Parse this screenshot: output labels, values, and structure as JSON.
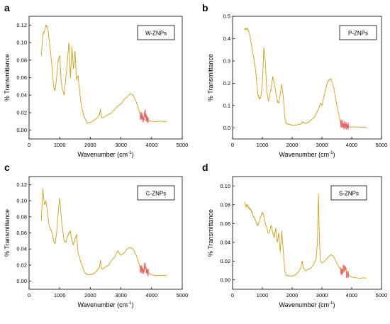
{
  "colors": {
    "line": "#c8a020",
    "axis": "#000000",
    "noise": "#e04a5a"
  },
  "chart_data": [
    {
      "type": "line",
      "panel_letter": "a",
      "legend_label": "W-ZNPs",
      "xlabel": "Wavenumber (cm",
      "xlabel_sup": "-1",
      "xlabel_close": ")",
      "ylabel": "% Transmittance",
      "xlim": [
        0,
        5000
      ],
      "ylim": [
        -0.01,
        0.13
      ],
      "xticks": [
        0,
        1000,
        2000,
        3000,
        4000,
        5000
      ],
      "yticks": [
        0.0,
        0.02,
        0.04,
        0.06,
        0.08,
        0.1,
        0.12
      ],
      "ytick_labels": [
        "0.00",
        "0.02",
        "0.04",
        "0.06",
        "0.08",
        "0.10",
        "0.12"
      ],
      "grid": false,
      "legend_position": "top-right",
      "series": [
        {
          "x": [
            400,
            450,
            500,
            550,
            600,
            650,
            700,
            750,
            800,
            850,
            900,
            950,
            1000,
            1050,
            1100,
            1150,
            1200,
            1250,
            1300,
            1350,
            1400,
            1450,
            1500,
            1550,
            1600,
            1650,
            1700,
            1750,
            1800,
            1900,
            2000,
            2100,
            2200,
            2300,
            2330,
            2360,
            2400,
            2500,
            2600,
            2700,
            2800,
            2900,
            3000,
            3100,
            3200,
            3300,
            3400,
            3500,
            3600,
            3700,
            3750,
            3800,
            3850,
            3900,
            4000,
            4200,
            4500
          ],
          "y": [
            0.085,
            0.11,
            0.112,
            0.12,
            0.118,
            0.105,
            0.09,
            0.072,
            0.05,
            0.045,
            0.06,
            0.08,
            0.085,
            0.055,
            0.045,
            0.04,
            0.06,
            0.078,
            0.1,
            0.06,
            0.095,
            0.07,
            0.09,
            0.058,
            0.062,
            0.045,
            0.03,
            0.022,
            0.015,
            0.008,
            0.009,
            0.011,
            0.013,
            0.018,
            0.024,
            0.015,
            0.014,
            0.016,
            0.018,
            0.02,
            0.024,
            0.028,
            0.03,
            0.035,
            0.038,
            0.042,
            0.04,
            0.032,
            0.022,
            0.015,
            0.012,
            0.018,
            0.013,
            0.011,
            0.01,
            0.01,
            0.01
          ]
        }
      ]
    },
    {
      "type": "line",
      "panel_letter": "b",
      "legend_label": "P-ZNPs",
      "xlabel": "Wavenumber (cm",
      "xlabel_sup": "-1",
      "xlabel_close": ")",
      "ylabel": "% Transmittance",
      "xlim": [
        0,
        5000
      ],
      "ylim": [
        -0.05,
        0.5
      ],
      "xticks": [
        0,
        1000,
        2000,
        3000,
        4000,
        5000
      ],
      "yticks": [
        0.0,
        0.1,
        0.2,
        0.3,
        0.4,
        0.5
      ],
      "ytick_labels": [
        "0.0",
        "0.1",
        "0.2",
        "0.3",
        "0.4",
        "0.5"
      ],
      "grid": false,
      "legend_position": "top-right",
      "series": [
        {
          "x": [
            400,
            450,
            500,
            550,
            600,
            650,
            700,
            750,
            800,
            850,
            900,
            950,
            1000,
            1050,
            1100,
            1150,
            1200,
            1250,
            1300,
            1350,
            1400,
            1450,
            1500,
            1550,
            1600,
            1650,
            1700,
            1750,
            1800,
            1900,
            2000,
            2100,
            2200,
            2300,
            2350,
            2400,
            2500,
            2600,
            2700,
            2800,
            2900,
            2950,
            3000,
            3100,
            3200,
            3300,
            3400,
            3500,
            3600,
            3700,
            3800,
            3900,
            4000,
            4200,
            4500
          ],
          "y": [
            0.445,
            0.44,
            0.448,
            0.43,
            0.4,
            0.36,
            0.32,
            0.28,
            0.22,
            0.15,
            0.13,
            0.14,
            0.2,
            0.36,
            0.3,
            0.16,
            0.12,
            0.15,
            0.18,
            0.23,
            0.2,
            0.16,
            0.12,
            0.11,
            0.15,
            0.195,
            0.14,
            0.05,
            0.02,
            0.015,
            0.012,
            0.012,
            0.015,
            0.018,
            0.028,
            0.02,
            0.022,
            0.03,
            0.04,
            0.06,
            0.09,
            0.11,
            0.1,
            0.16,
            0.21,
            0.22,
            0.18,
            0.1,
            0.04,
            0.015,
            0.008,
            0.005,
            0.004,
            0.003,
            0.002
          ]
        }
      ]
    },
    {
      "type": "line",
      "panel_letter": "c",
      "legend_label": "C-ZNPs",
      "xlabel": "Wavenumber (cm",
      "xlabel_sup": "-1",
      "xlabel_close": ")",
      "ylabel": "% Transmittance",
      "xlim": [
        0,
        5000
      ],
      "ylim": [
        -0.01,
        0.13
      ],
      "xticks": [
        0,
        1000,
        2000,
        3000,
        4000,
        5000
      ],
      "yticks": [
        0.0,
        0.02,
        0.04,
        0.06,
        0.08,
        0.1,
        0.12
      ],
      "ytick_labels": [
        "0.00",
        "0.02",
        "0.04",
        "0.06",
        "0.08",
        "0.10",
        "0.12"
      ],
      "grid": false,
      "legend_position": "top-right",
      "series": [
        {
          "x": [
            400,
            450,
            500,
            550,
            600,
            650,
            700,
            750,
            800,
            850,
            900,
            950,
            1000,
            1050,
            1100,
            1150,
            1200,
            1250,
            1300,
            1350,
            1400,
            1450,
            1500,
            1550,
            1600,
            1650,
            1700,
            1750,
            1800,
            1900,
            2000,
            2100,
            2200,
            2300,
            2330,
            2360,
            2400,
            2500,
            2600,
            2700,
            2800,
            2900,
            3000,
            3100,
            3200,
            3300,
            3400,
            3500,
            3600,
            3700,
            3750,
            3800,
            3850,
            3900,
            4000,
            4200,
            4500
          ],
          "y": [
            0.075,
            0.115,
            0.095,
            0.1,
            0.085,
            0.07,
            0.065,
            0.06,
            0.05,
            0.047,
            0.06,
            0.085,
            0.103,
            0.08,
            0.062,
            0.05,
            0.048,
            0.055,
            0.06,
            0.062,
            0.05,
            0.045,
            0.052,
            0.058,
            0.035,
            0.03,
            0.022,
            0.018,
            0.012,
            0.008,
            0.008,
            0.009,
            0.012,
            0.018,
            0.026,
            0.016,
            0.015,
            0.018,
            0.02,
            0.026,
            0.03,
            0.038,
            0.032,
            0.035,
            0.04,
            0.042,
            0.04,
            0.032,
            0.02,
            0.014,
            0.012,
            0.018,
            0.012,
            0.01,
            0.008,
            0.007,
            0.007
          ]
        }
      ]
    },
    {
      "type": "line",
      "panel_letter": "d",
      "legend_label": "S-ZNPs",
      "xlabel": "Wavenumber (cm",
      "xlabel_sup": "-1",
      "xlabel_close": ")",
      "ylabel": "% Transmittance",
      "xlim": [
        0,
        5000
      ],
      "ylim": [
        -0.01,
        0.11
      ],
      "xticks": [
        0,
        1000,
        2000,
        3000,
        4000,
        5000
      ],
      "yticks": [
        0.0,
        0.02,
        0.04,
        0.06,
        0.08,
        0.1
      ],
      "ytick_labels": [
        "0.00",
        "0.02",
        "0.04",
        "0.06",
        "0.08",
        "0.10"
      ],
      "grid": false,
      "legend_position": "top-right",
      "series": [
        {
          "x": [
            400,
            450,
            500,
            550,
            600,
            650,
            700,
            750,
            800,
            850,
            900,
            950,
            1000,
            1050,
            1100,
            1150,
            1200,
            1250,
            1300,
            1350,
            1400,
            1450,
            1500,
            1550,
            1600,
            1650,
            1700,
            1750,
            1800,
            1900,
            2000,
            2100,
            2200,
            2300,
            2340,
            2380,
            2450,
            2600,
            2700,
            2800,
            2850,
            2880,
            2920,
            2950,
            3000,
            3100,
            3200,
            3300,
            3400,
            3500,
            3600,
            3700,
            3800,
            3900,
            4000,
            4200,
            4500
          ],
          "y": [
            0.083,
            0.078,
            0.08,
            0.076,
            0.075,
            0.072,
            0.068,
            0.065,
            0.06,
            0.058,
            0.062,
            0.068,
            0.072,
            0.068,
            0.06,
            0.055,
            0.05,
            0.052,
            0.058,
            0.05,
            0.045,
            0.055,
            0.04,
            0.05,
            0.03,
            0.052,
            0.032,
            0.01,
            0.005,
            0.004,
            0.004,
            0.005,
            0.008,
            0.014,
            0.02,
            0.012,
            0.01,
            0.012,
            0.015,
            0.022,
            0.04,
            0.092,
            0.04,
            0.02,
            0.018,
            0.02,
            0.024,
            0.027,
            0.024,
            0.018,
            0.012,
            0.008,
            0.012,
            0.005,
            0.003,
            0.002,
            0.002
          ]
        }
      ]
    }
  ]
}
